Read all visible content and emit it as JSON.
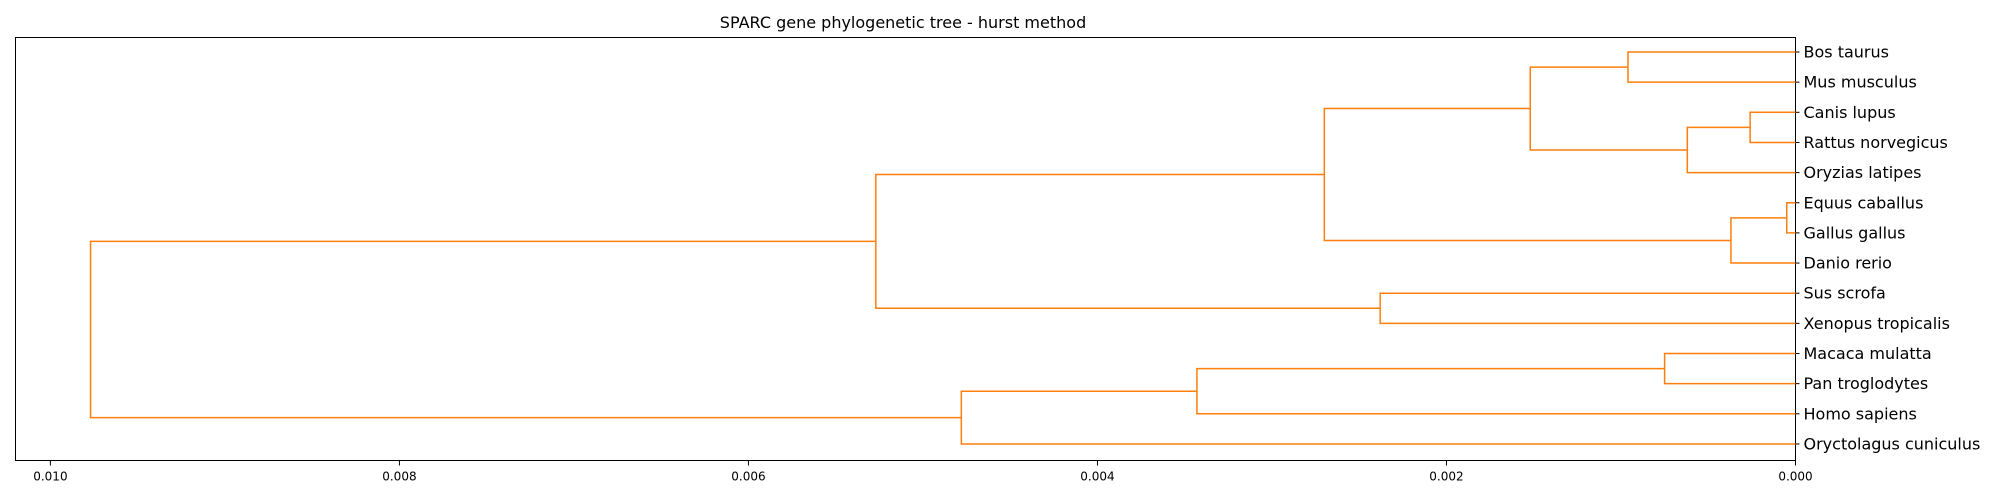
{
  "chart_data": {
    "type": "dendrogram",
    "title": "SPARC gene phylogenetic tree - hurst method",
    "orientation": "right",
    "xlim": [
      0.0102,
      0.0
    ],
    "x_ticks": [
      0.01,
      0.008,
      0.006,
      0.004,
      0.002,
      0.0
    ],
    "x_tick_labels": [
      "0.010",
      "0.008",
      "0.006",
      "0.004",
      "0.002",
      "0.000"
    ],
    "line_color": "#ff7f0e",
    "leaves": [
      "Bos taurus",
      "Mus musculus",
      "Canis lupus",
      "Rattus norvegicus",
      "Oryzias latipes",
      "Equus caballus",
      "Gallus gallus",
      "Danio rerio",
      "Sus scrofa",
      "Xenopus tropicalis",
      "Macaca mulatta",
      "Pan troglodytes",
      "Homo sapiens",
      "Oryctolagus cuniculus"
    ],
    "merges": [
      {
        "left": "L0",
        "right": "L1",
        "height": 0.00096
      },
      {
        "left": "L2",
        "right": "L3",
        "height": 0.00026
      },
      {
        "left": "L5",
        "right": "L6",
        "height": 5e-05
      },
      {
        "left": "L10",
        "right": "L11",
        "height": 0.00075
      },
      {
        "left": "M1",
        "right": "L4",
        "height": 0.00062
      },
      {
        "left": "M2",
        "right": "L7",
        "height": 0.00037
      },
      {
        "left": "M0",
        "right": "M4",
        "height": 0.00152
      },
      {
        "left": "M6",
        "right": "M5",
        "height": 0.0027
      },
      {
        "left": "L8",
        "right": "L9",
        "height": 0.00238
      },
      {
        "left": "M7",
        "right": "M8",
        "height": 0.00527
      },
      {
        "left": "M3",
        "right": "L12",
        "height": 0.00343
      },
      {
        "left": "M10",
        "right": "L13",
        "height": 0.00478
      },
      {
        "left": "M9",
        "right": "M11",
        "height": 0.00977
      }
    ]
  }
}
